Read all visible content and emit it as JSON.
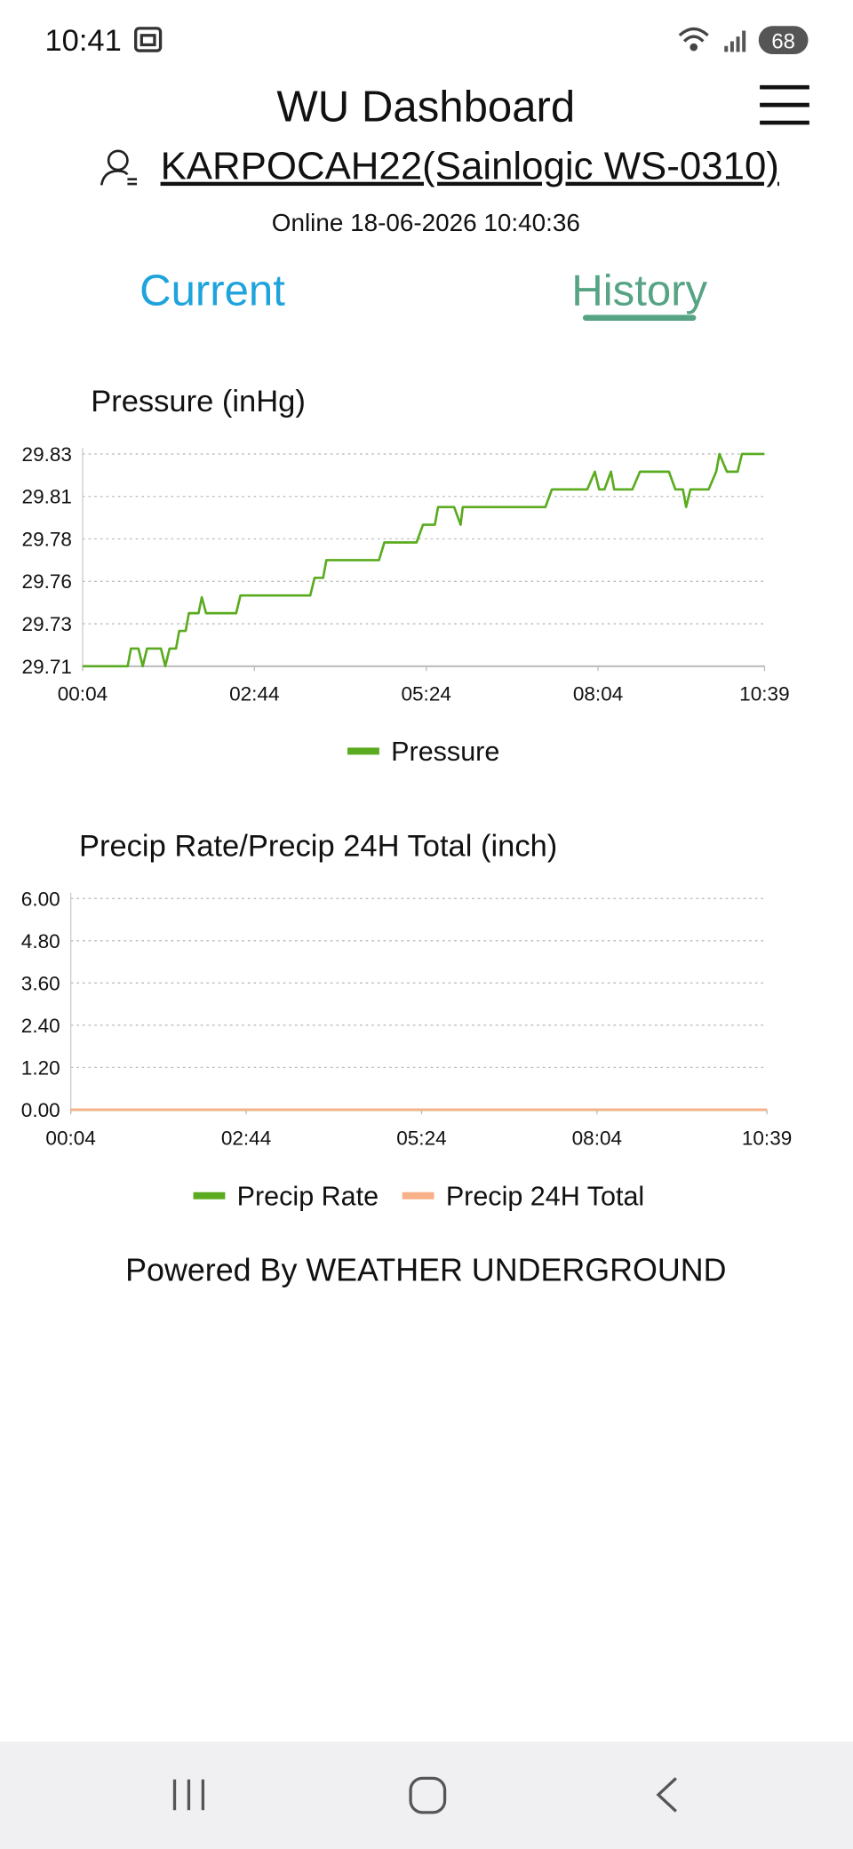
{
  "status_bar": {
    "time": "10:41",
    "battery": "68"
  },
  "header": {
    "title": "WU Dashboard",
    "station": "KARPOCAH22(Sainlogic WS-0310)",
    "status": "Online 18-06-2026 10:40:36"
  },
  "tabs": [
    "Current",
    "History"
  ],
  "chart_data": [
    {
      "type": "line",
      "title": "Pressure (inHg)",
      "x": [
        4,
        46,
        49,
        56,
        60,
        64,
        77,
        81,
        85,
        91,
        94,
        100,
        103,
        112,
        115,
        119,
        147,
        151,
        216,
        220,
        228,
        231,
        280,
        285,
        315,
        321,
        332,
        335,
        350,
        356,
        358,
        435,
        441,
        474,
        481,
        485,
        490,
        496,
        499,
        516,
        523,
        550,
        556,
        563,
        566,
        570,
        587,
        594,
        597,
        604,
        614,
        618,
        639
      ],
      "series": [
        {
          "name": "Pressure",
          "color": "#5aab1f",
          "values": [
            29.71,
            29.71,
            29.72,
            29.72,
            29.71,
            29.72,
            29.72,
            29.71,
            29.72,
            29.72,
            29.73,
            29.73,
            29.74,
            29.74,
            29.749,
            29.74,
            29.74,
            29.75,
            29.75,
            29.76,
            29.76,
            29.77,
            29.77,
            29.78,
            29.78,
            29.79,
            29.79,
            29.8,
            29.8,
            29.79,
            29.8,
            29.8,
            29.81,
            29.81,
            29.82,
            29.81,
            29.81,
            29.82,
            29.81,
            29.81,
            29.82,
            29.82,
            29.81,
            29.81,
            29.8,
            29.81,
            29.81,
            29.82,
            29.83,
            29.82,
            29.82,
            29.83,
            29.83
          ]
        }
      ],
      "xlim": [
        4,
        639
      ],
      "xticks": [
        {
          "value": 4,
          "label": "00:04"
        },
        {
          "value": 164,
          "label": "02:44"
        },
        {
          "value": 324,
          "label": "05:24"
        },
        {
          "value": 484,
          "label": "08:04"
        },
        {
          "value": 639,
          "label": "10:39"
        }
      ],
      "ylim": [
        29.71,
        29.83
      ],
      "yticks": [
        29.71,
        {
          "value": 29.734,
          "label": "29.73"
        },
        {
          "value": 29.758,
          "label": "29.76"
        },
        {
          "value": 29.782,
          "label": "29.78"
        },
        {
          "value": 29.806,
          "label": "29.81"
        },
        29.83
      ],
      "grid": true,
      "legend": "bottom"
    },
    {
      "type": "line",
      "title": "Precip Rate/Precip 24H Total (inch)",
      "x": [
        4,
        639
      ],
      "series": [
        {
          "name": "Precip Rate",
          "color": "#5aab1f",
          "values": [
            0,
            0
          ]
        },
        {
          "name": "Precip 24H Total",
          "color": "#f8b088",
          "values": [
            0,
            0
          ]
        }
      ],
      "xlim": [
        4,
        639
      ],
      "xticks": [
        {
          "value": 4,
          "label": "00:04"
        },
        {
          "value": 164,
          "label": "02:44"
        },
        {
          "value": 324,
          "label": "05:24"
        },
        {
          "value": 484,
          "label": "08:04"
        },
        {
          "value": 639,
          "label": "10:39"
        }
      ],
      "ylim": [
        0,
        6
      ],
      "yticks": [
        {
          "value": 0,
          "label": "0.00"
        },
        {
          "value": 1.2,
          "label": "1.20"
        },
        {
          "value": 2.4,
          "label": "2.40"
        },
        {
          "value": 3.6,
          "label": "3.60"
        },
        {
          "value": 4.8,
          "label": "4.80"
        },
        {
          "value": 6,
          "label": "6.00"
        }
      ],
      "grid": true,
      "legend": "bottom"
    }
  ],
  "footer": "Powered By WEATHER UNDERGROUND"
}
